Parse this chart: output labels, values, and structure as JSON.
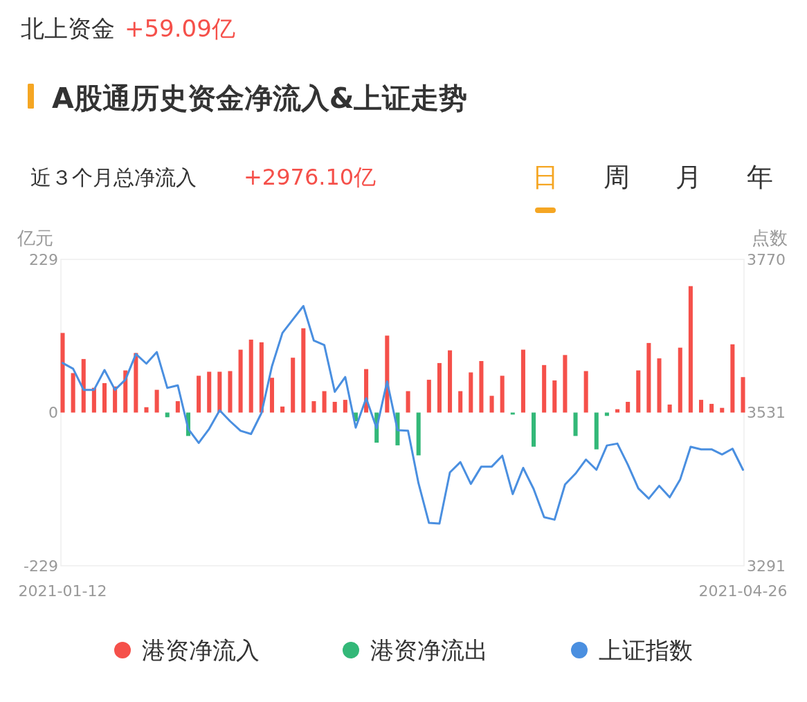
{
  "chart_data": {
    "type": "bar",
    "title": "A股通历史资金净流入&上证走势",
    "ylabel": "亿元",
    "y2label": "点数",
    "annotations": [
      "北上资金",
      "+59.09亿",
      "近３个月总净流入",
      "+2976.10亿",
      "日",
      "周",
      "月",
      "年"
    ],
    "categories": [
      "2021-01-12",
      null,
      null,
      null,
      null,
      null,
      null,
      null,
      null,
      null,
      null,
      null,
      null,
      null,
      null,
      null,
      null,
      null,
      null,
      null,
      null,
      null,
      null,
      null,
      null,
      null,
      null,
      null,
      null,
      null,
      null,
      null,
      null,
      null,
      null,
      null,
      null,
      null,
      null,
      null,
      null,
      null,
      null,
      null,
      null,
      null,
      null,
      null,
      null,
      null,
      null,
      null,
      null,
      null,
      null,
      null,
      null,
      null,
      null,
      null,
      null,
      null,
      null,
      null,
      null,
      "2021-04-26"
    ],
    "stacked": true,
    "series": [
      {
        "name": "港资净流入",
        "color": "#f5504a",
        "values": [
          119,
          59,
          80,
          37,
          44,
          39,
          63,
          89,
          8,
          34,
          null,
          17,
          null,
          55,
          61,
          61,
          62,
          94,
          109,
          105,
          52,
          9,
          82,
          126,
          17,
          32,
          16,
          19,
          null,
          65,
          null,
          115,
          null,
          32,
          null,
          49,
          74,
          93,
          32,
          60,
          77,
          25,
          55,
          null,
          94,
          null,
          71,
          48,
          86,
          null,
          62,
          null,
          null,
          5,
          16,
          63,
          104,
          81,
          12,
          97,
          189,
          19,
          13,
          7,
          102,
          53
        ]
      },
      {
        "name": "港资净流出",
        "color": "#33b878",
        "values": [
          null,
          null,
          null,
          null,
          null,
          null,
          null,
          null,
          null,
          null,
          -7,
          null,
          -35,
          null,
          null,
          null,
          null,
          null,
          null,
          null,
          null,
          null,
          null,
          null,
          null,
          null,
          null,
          null,
          -13,
          null,
          -45,
          null,
          -49,
          null,
          -64,
          null,
          null,
          null,
          null,
          null,
          null,
          null,
          null,
          -3,
          null,
          -51,
          null,
          null,
          null,
          -35,
          null,
          -55,
          -5,
          null,
          null,
          null,
          null,
          null,
          null,
          null,
          null,
          null,
          null,
          null,
          null,
          null
        ]
      },
      {
        "name": "上证指数",
        "type": "line",
        "axis": "y2",
        "color": "#4a8fe0",
        "values": [
          3608,
          3599,
          3566,
          3566,
          3597,
          3566,
          3582,
          3622,
          3607,
          3625,
          3569,
          3573,
          3505,
          3483,
          3505,
          3534,
          3517,
          3502,
          3497,
          3530,
          3603,
          3655,
          3676,
          3697,
          3643,
          3636,
          3563,
          3586,
          3507,
          3553,
          3506,
          3579,
          3503,
          3502,
          3420,
          3358,
          3357,
          3437,
          3453,
          3419,
          3446,
          3446,
          3463,
          3403,
          3444,
          3411,
          3367,
          3363,
          3418,
          3435,
          3457,
          3441,
          3479,
          3482,
          3449,
          3412,
          3396,
          3416,
          3398,
          3426,
          3477,
          3473,
          3473,
          3465,
          3474,
          3441
        ]
      }
    ],
    "ylim": [
      -229,
      229
    ],
    "yticks": [
      -229,
      0,
      229
    ],
    "y2lim": [
      3291,
      3770
    ],
    "y2ticks": [
      3291,
      3531,
      3770
    ],
    "legend": "bottom"
  }
}
